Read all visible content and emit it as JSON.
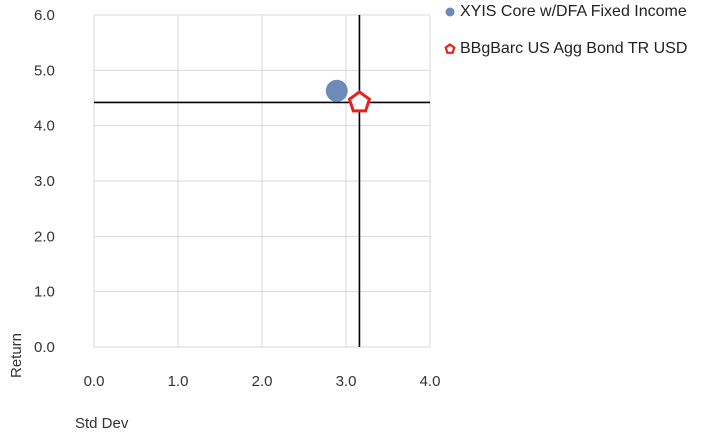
{
  "chart_data": {
    "type": "scatter",
    "title": "",
    "xlabel": "Std Dev",
    "ylabel": "Return",
    "xlim": [
      0,
      4
    ],
    "ylim": [
      0,
      6
    ],
    "x_ticks": [
      "0.0",
      "1.0",
      "2.0",
      "3.0",
      "4.0"
    ],
    "y_ticks": [
      "0.0",
      "1.0",
      "2.0",
      "3.0",
      "4.0",
      "5.0",
      "6.0"
    ],
    "grid": true,
    "legend_position": "top-right",
    "series": [
      {
        "name": "XYIS Core w/DFA Fixed Income",
        "x": 2.89,
        "y": 4.63,
        "marker": "circle",
        "color": "#6f8ab7"
      },
      {
        "name": "BBgBarc US Agg Bond TR USD",
        "x": 3.16,
        "y": 4.42,
        "marker": "pentagon",
        "color": "#e8221b"
      }
    ],
    "reference_lines": {
      "x": 3.16,
      "y": 4.42,
      "color": "#000000"
    }
  }
}
